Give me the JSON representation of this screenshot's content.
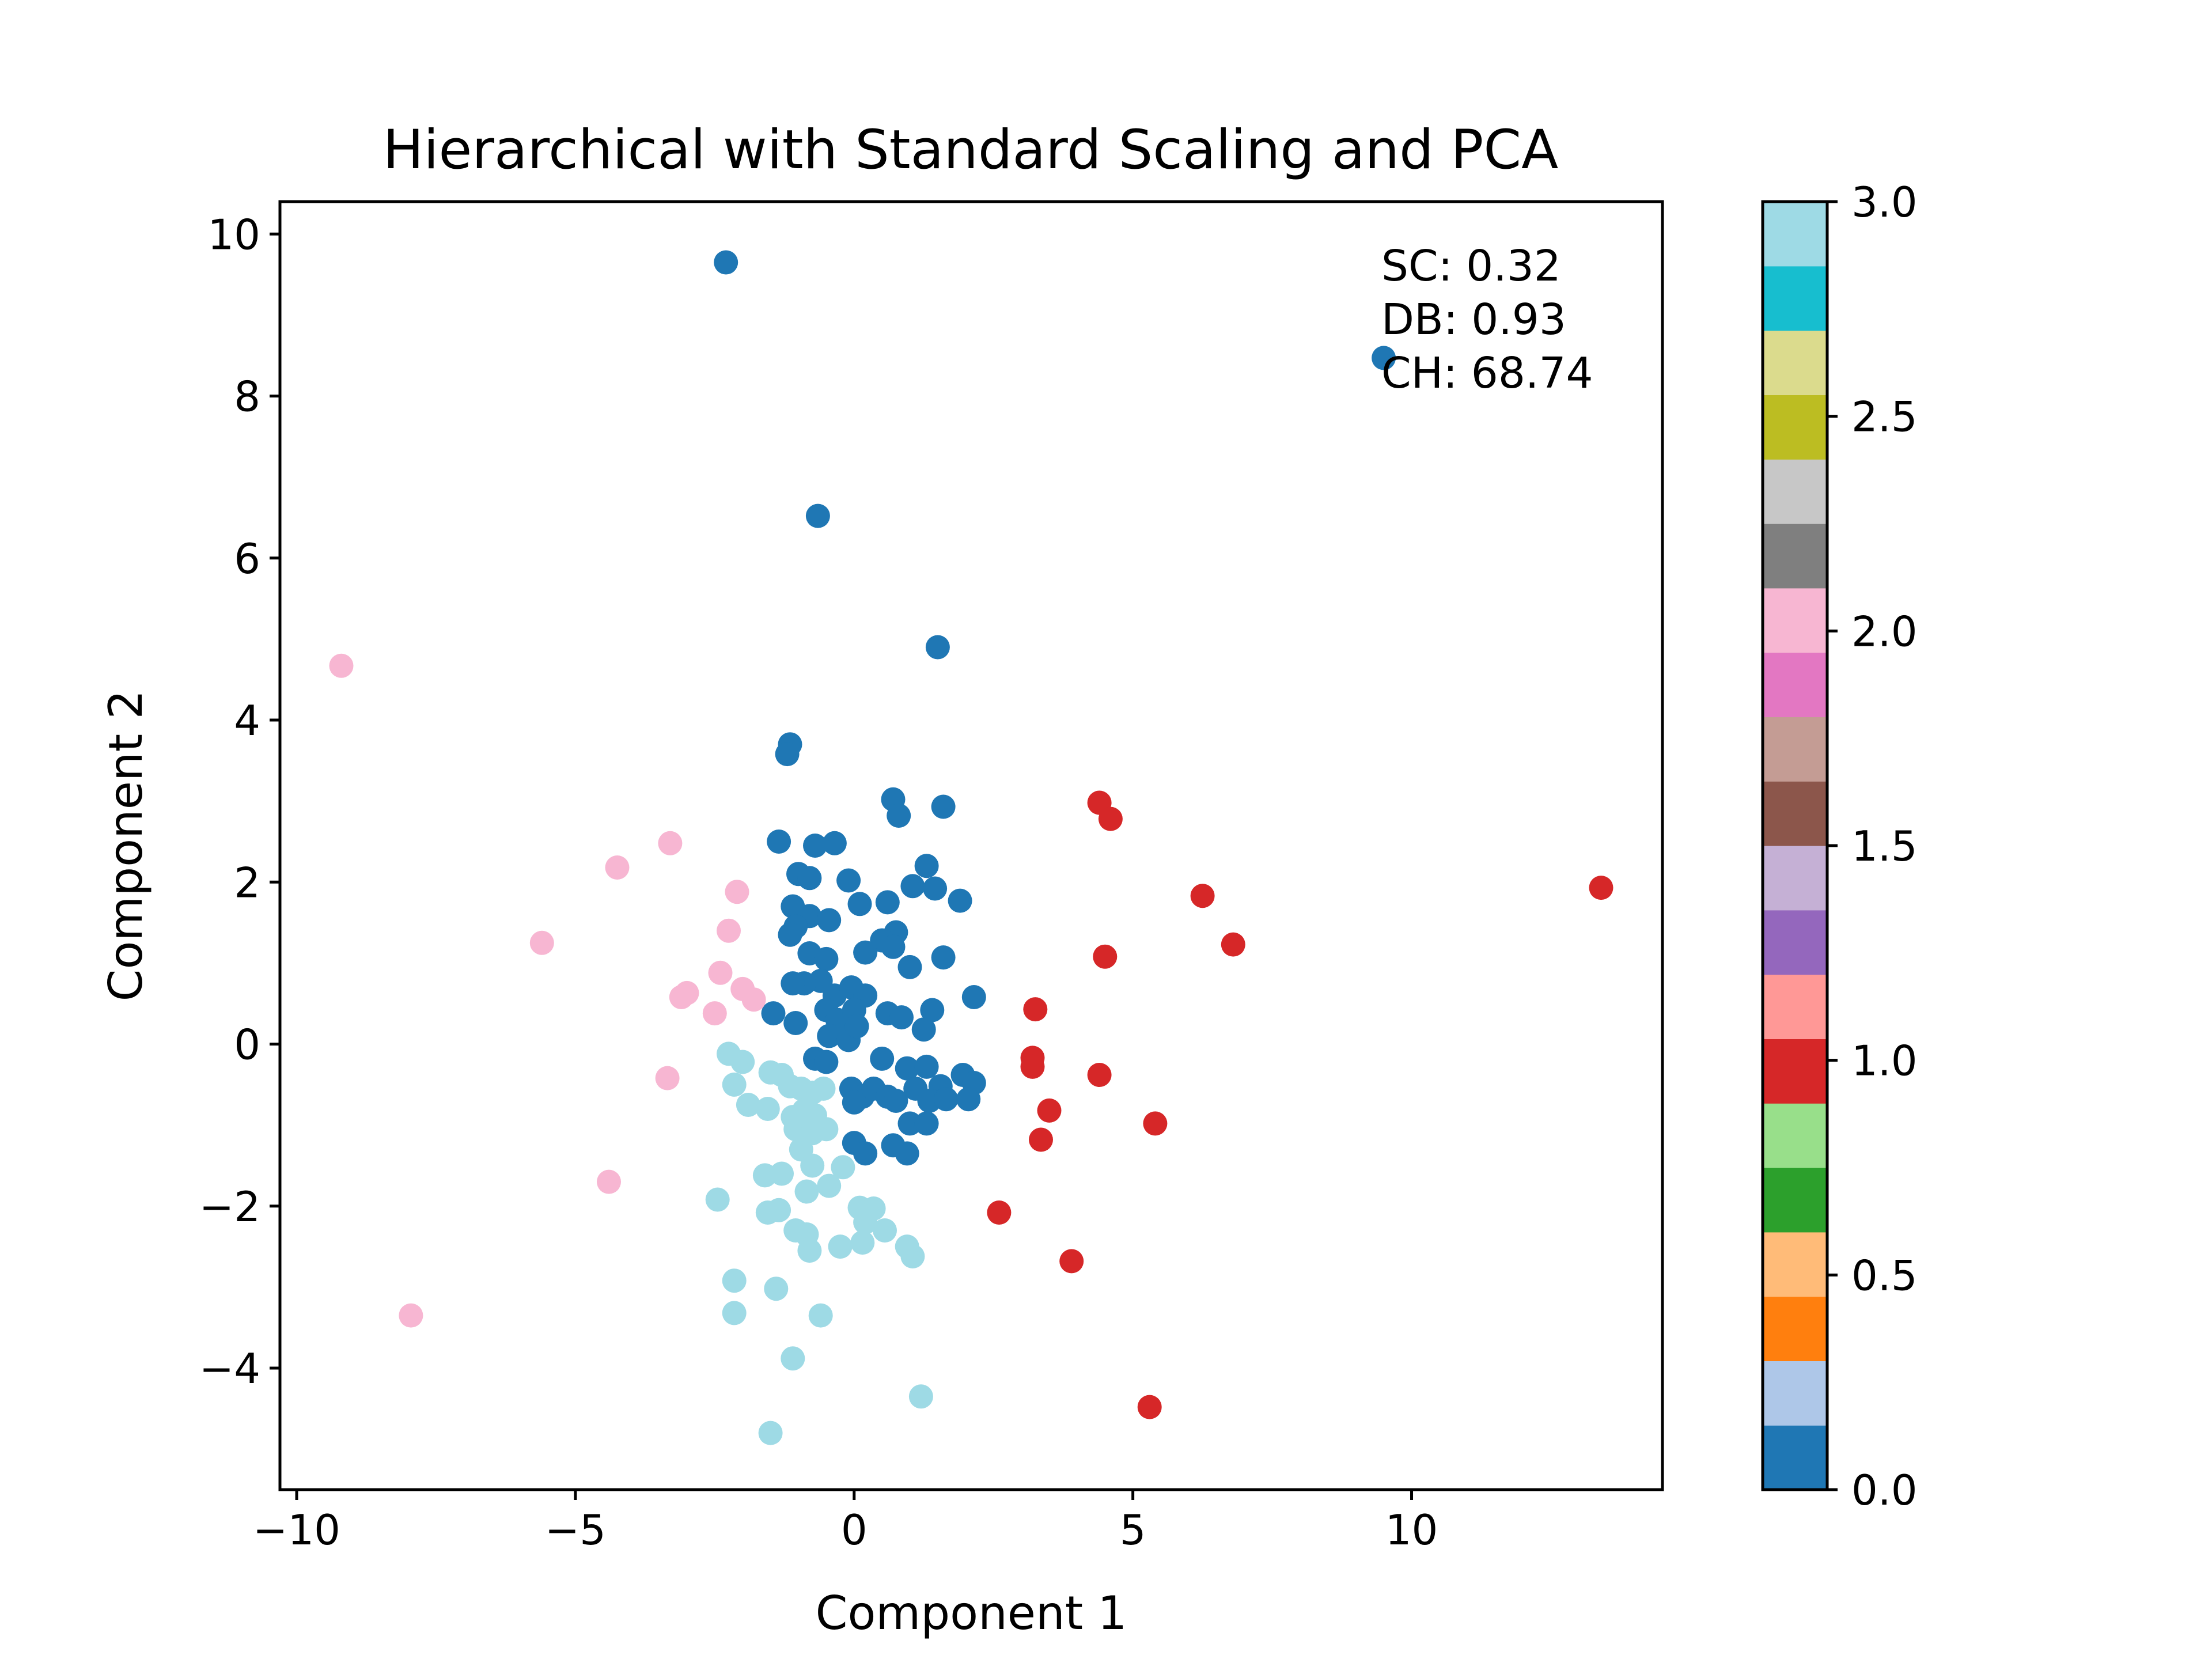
{
  "chart_data": {
    "type": "scatter",
    "title": "Hierarchical with Standard Scaling and PCA",
    "xlabel": "Component 1",
    "ylabel": "Component 2",
    "xlim": [
      -10.3,
      14.5
    ],
    "ylim": [
      -5.5,
      10.4
    ],
    "grid": false,
    "x_ticks": [
      -10,
      -5,
      0,
      5,
      10
    ],
    "y_ticks": [
      -4,
      -2,
      0,
      2,
      4,
      6,
      8,
      10
    ],
    "x_tick_labels": [
      "−10",
      "−5",
      "0",
      "5",
      "10"
    ],
    "y_tick_labels": [
      "−4",
      "−2",
      "0",
      "2",
      "4",
      "6",
      "8",
      "10"
    ],
    "annotation_lines": [
      "SC: 0.32",
      "DB: 0.93",
      "CH: 68.74"
    ],
    "colorbar": {
      "ticks": [
        0.0,
        0.5,
        1.0,
        1.5,
        2.0,
        2.5,
        3.0
      ],
      "tick_labels": [
        "0.0",
        "0.5",
        "1.0",
        "1.5",
        "2.0",
        "2.5",
        "3.0"
      ],
      "range": [
        0,
        3
      ],
      "colors": [
        "#1f77b4",
        "#aec7e8",
        "#ff7f0e",
        "#ffbb78",
        "#2ca02c",
        "#98df8a",
        "#d62728",
        "#ff9896",
        "#9467bd",
        "#c5b0d5",
        "#8c564b",
        "#c49c94",
        "#e377c2",
        "#f7b6d2",
        "#7f7f7f",
        "#c7c7c7",
        "#bcbd22",
        "#dbdb8d",
        "#17becf",
        "#9edae5"
      ]
    },
    "cluster_colors": {
      "0": "#1f77b4",
      "1": "#d62728",
      "2": "#f7b6d2",
      "3": "#9edae5"
    },
    "series": [
      {
        "cluster": 0,
        "points": [
          [
            -2.3,
            9.65
          ],
          [
            9.5,
            8.47
          ],
          [
            -0.65,
            6.52
          ],
          [
            1.5,
            4.9
          ],
          [
            -1.15,
            3.7
          ],
          [
            -1.2,
            3.58
          ],
          [
            0.7,
            3.02
          ],
          [
            0.8,
            2.82
          ],
          [
            1.6,
            2.93
          ],
          [
            -1.35,
            2.5
          ],
          [
            -0.7,
            2.45
          ],
          [
            -0.35,
            2.48
          ],
          [
            -1,
            2.1
          ],
          [
            -0.1,
            2.02
          ],
          [
            -0.8,
            2.05
          ],
          [
            1.3,
            2.2
          ],
          [
            1.05,
            1.95
          ],
          [
            1.45,
            1.92
          ],
          [
            1.9,
            1.77
          ],
          [
            0.6,
            1.75
          ],
          [
            0.1,
            1.73
          ],
          [
            -1.1,
            1.7
          ],
          [
            -0.8,
            1.58
          ],
          [
            -0.45,
            1.53
          ],
          [
            -1.05,
            1.45
          ],
          [
            -1.15,
            1.35
          ],
          [
            0.75,
            1.38
          ],
          [
            0.5,
            1.28
          ],
          [
            0.2,
            1.13
          ],
          [
            0.7,
            1.2
          ],
          [
            1.6,
            1.07
          ],
          [
            -0.8,
            1.12
          ],
          [
            -0.5,
            1.05
          ],
          [
            1.0,
            0.95
          ],
          [
            -0.6,
            0.78
          ],
          [
            -0.9,
            0.75
          ],
          [
            -1.1,
            0.75
          ],
          [
            -0.35,
            0.6
          ],
          [
            -0.05,
            0.7
          ],
          [
            0.2,
            0.6
          ],
          [
            2.15,
            0.58
          ],
          [
            -1.45,
            0.38
          ],
          [
            -1.05,
            0.26
          ],
          [
            -0.5,
            0.42
          ],
          [
            -0.3,
            0.3
          ],
          [
            0.0,
            0.42
          ],
          [
            0.6,
            0.38
          ],
          [
            0.85,
            0.33
          ],
          [
            1.4,
            0.42
          ],
          [
            -0.45,
            0.1
          ],
          [
            -0.1,
            0.05
          ],
          [
            0.05,
            0.22
          ],
          [
            1.25,
            0.18
          ],
          [
            -0.7,
            -0.18
          ],
          [
            -0.5,
            -0.22
          ],
          [
            0.5,
            -0.18
          ],
          [
            0.95,
            -0.3
          ],
          [
            1.3,
            -0.28
          ],
          [
            1.95,
            -0.38
          ],
          [
            -0.05,
            -0.55
          ],
          [
            0.15,
            -0.65
          ],
          [
            0.35,
            -0.55
          ],
          [
            0.6,
            -0.65
          ],
          [
            1.1,
            -0.55
          ],
          [
            1.55,
            -0.52
          ],
          [
            0.0,
            -0.72
          ],
          [
            0.75,
            -0.7
          ],
          [
            1.35,
            -0.7
          ],
          [
            1.65,
            -0.68
          ],
          [
            2.15,
            -0.48
          ],
          [
            2.05,
            -0.68
          ],
          [
            1.0,
            -0.98
          ],
          [
            1.3,
            -0.98
          ],
          [
            0.0,
            -1.22
          ],
          [
            0.2,
            -1.35
          ],
          [
            0.7,
            -1.25
          ],
          [
            0.95,
            -1.35
          ]
        ]
      },
      {
        "cluster": 1,
        "points": [
          [
            13.4,
            1.93
          ],
          [
            4.4,
            2.98
          ],
          [
            4.6,
            2.78
          ],
          [
            6.25,
            1.83
          ],
          [
            6.8,
            1.23
          ],
          [
            4.5,
            1.08
          ],
          [
            3.25,
            0.43
          ],
          [
            3.2,
            -0.17
          ],
          [
            3.2,
            -0.28
          ],
          [
            4.4,
            -0.38
          ],
          [
            3.5,
            -0.82
          ],
          [
            5.4,
            -0.98
          ],
          [
            3.35,
            -1.18
          ],
          [
            2.6,
            -2.08
          ],
          [
            3.9,
            -2.68
          ],
          [
            5.3,
            -4.48
          ]
        ]
      },
      {
        "cluster": 2,
        "points": [
          [
            -9.2,
            4.67
          ],
          [
            -4.25,
            2.18
          ],
          [
            -3.3,
            2.48
          ],
          [
            -2.1,
            1.88
          ],
          [
            -5.6,
            1.25
          ],
          [
            -2.25,
            1.4
          ],
          [
            -2.4,
            0.88
          ],
          [
            -2.0,
            0.68
          ],
          [
            -1.8,
            0.55
          ],
          [
            -3.0,
            0.63
          ],
          [
            -3.1,
            0.58
          ],
          [
            -2.5,
            0.38
          ],
          [
            -3.35,
            -0.42
          ],
          [
            -4.4,
            -1.7
          ],
          [
            -7.95,
            -3.35
          ]
        ]
      },
      {
        "cluster": 3,
        "points": [
          [
            -2.25,
            -0.12
          ],
          [
            -2.0,
            -0.22
          ],
          [
            -1.5,
            -0.35
          ],
          [
            -1.3,
            -0.38
          ],
          [
            -1.15,
            -0.52
          ],
          [
            -0.95,
            -0.55
          ],
          [
            -0.75,
            -0.6
          ],
          [
            -0.55,
            -0.55
          ],
          [
            -2.15,
            -0.5
          ],
          [
            -1.9,
            -0.75
          ],
          [
            -1.55,
            -0.8
          ],
          [
            -1.1,
            -0.9
          ],
          [
            -0.9,
            -0.82
          ],
          [
            -0.7,
            -0.88
          ],
          [
            -1.05,
            -1.05
          ],
          [
            -0.75,
            -1.1
          ],
          [
            -0.5,
            -1.05
          ],
          [
            -0.95,
            -1.3
          ],
          [
            -0.75,
            -1.5
          ],
          [
            -1.6,
            -1.62
          ],
          [
            -1.3,
            -1.6
          ],
          [
            -0.85,
            -1.82
          ],
          [
            -0.45,
            -1.75
          ],
          [
            -0.2,
            -1.52
          ],
          [
            -2.45,
            -1.92
          ],
          [
            -1.55,
            -2.08
          ],
          [
            -1.35,
            -2.05
          ],
          [
            0.1,
            -2.02
          ],
          [
            0.35,
            -2.03
          ],
          [
            0.2,
            -2.2
          ],
          [
            0.55,
            -2.3
          ],
          [
            -1.05,
            -2.3
          ],
          [
            -0.85,
            -2.35
          ],
          [
            -0.25,
            -2.5
          ],
          [
            0.15,
            -2.45
          ],
          [
            0.95,
            -2.5
          ],
          [
            -0.8,
            -2.55
          ],
          [
            1.05,
            -2.62
          ],
          [
            -2.15,
            -2.92
          ],
          [
            -1.4,
            -3.02
          ],
          [
            -2.15,
            -3.32
          ],
          [
            -0.6,
            -3.35
          ],
          [
            -1.1,
            -3.88
          ],
          [
            1.2,
            -4.35
          ],
          [
            -1.5,
            -4.8
          ]
        ]
      }
    ]
  }
}
